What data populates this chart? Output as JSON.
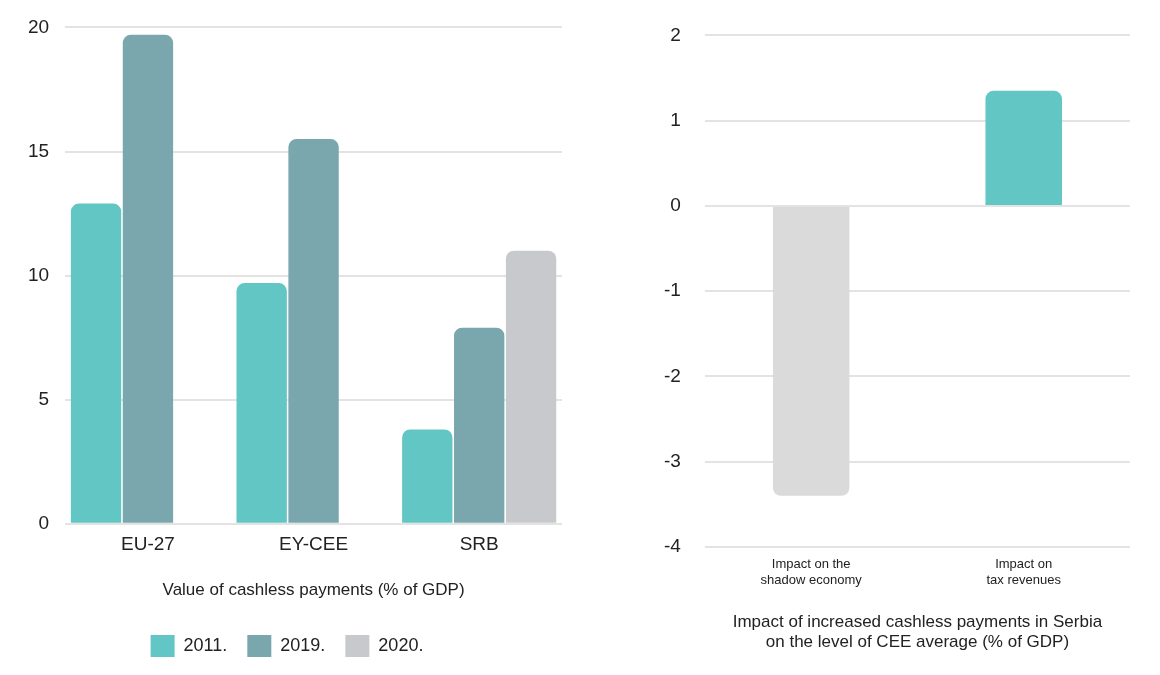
{
  "chart_data": [
    {
      "type": "bar",
      "xlabel": "Value of cashless payments (% of GDP)",
      "categories": [
        "EU-27",
        "EY-CEE",
        "SRB"
      ],
      "series": [
        {
          "name": "2011.",
          "color": "#62c6c4",
          "values": [
            12.9,
            9.7,
            3.8
          ]
        },
        {
          "name": "2019.",
          "color": "#7aa6ad",
          "values": [
            19.7,
            15.5,
            7.9
          ]
        },
        {
          "name": "2020.",
          "color": "#c8c9cc",
          "values": [
            null,
            null,
            11.0
          ]
        }
      ],
      "ylim": [
        0,
        20
      ],
      "yticks": [
        0,
        5,
        10,
        15,
        20
      ],
      "grid": "y",
      "legend": "bottom"
    },
    {
      "type": "bar",
      "xlabel": "Impact of increased cashless payments in Serbia\non the level of CEE average (% of GDP)",
      "categories": [
        "Impact on the\nshadow economy",
        "Impact on\ntax revenues"
      ],
      "values": [
        -3.4,
        1.35
      ],
      "colors": [
        "#dadada",
        "#62c6c4"
      ],
      "ylim": [
        -4,
        2
      ],
      "yticks": [
        -4,
        -3,
        -2,
        -1,
        0,
        1,
        2
      ],
      "grid": "y"
    }
  ]
}
